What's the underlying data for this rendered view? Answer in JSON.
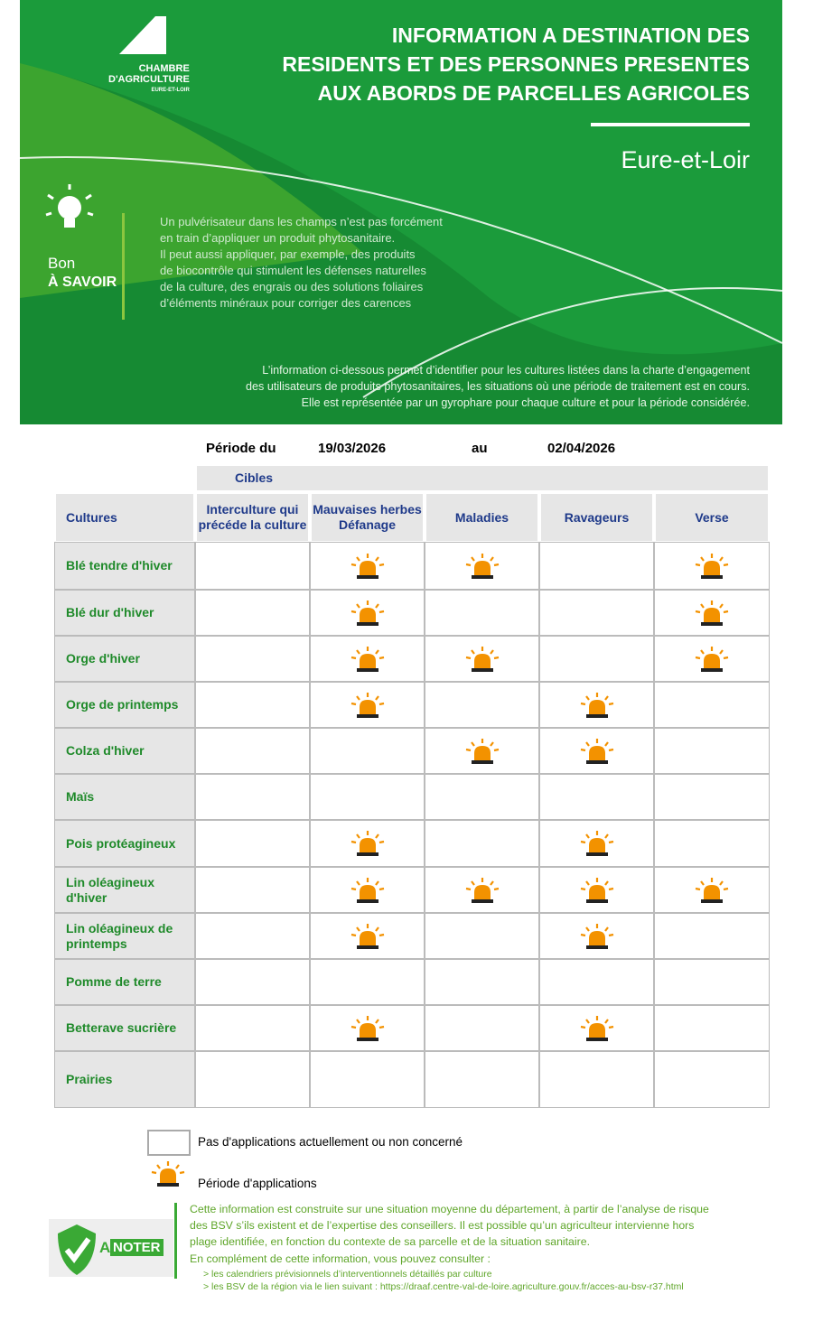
{
  "header": {
    "logo": [
      "CHAMBRE",
      "D'AGRICULTURE",
      "EURE-ET-LOIR"
    ],
    "title": [
      "INFORMATION A DESTINATION DES",
      "RESIDENTS ET DES PERSONNES PRESENTES",
      "AUX ABORDS DE PARCELLES AGRICOLES"
    ],
    "department": "Eure-et-Loir",
    "tip_label": [
      "Bon",
      "À SAVOIR"
    ],
    "tip_text": [
      "Un pulvérisateur dans les champs n’est pas forcément",
      "en train d’appliquer un produit phytosanitaire.",
      "Il peut aussi appliquer, par exemple, des produits",
      "de biocontrôle qui stimulent les défenses naturelles",
      "de la culture, des engrais ou des solutions foliaires",
      "d’éléments minéraux pour corriger des carences"
    ],
    "intro": [
      "L’information ci-dessous permet d’identifier pour les cultures listées dans la charte d’engagement",
      "des utilisateurs de produits phytosanitaires, les situations où une période de traitement est en cours.",
      "Elle est représentée par un gyrophare pour chaque culture et pour la période considérée."
    ]
  },
  "period": {
    "from_label": "Période du",
    "from": "19/03/2026",
    "to_label": "au",
    "to": "02/04/2026"
  },
  "table": {
    "group_header": "Cibles",
    "columns": [
      "Cultures",
      "Interculture qui précéde la culture",
      "Mauvaises herbes Défanage",
      "Maladies",
      "Ravageurs",
      "Verse"
    ],
    "rows": [
      {
        "culture": "Blé tendre d'hiver",
        "periods": [
          false,
          true,
          true,
          false,
          true
        ]
      },
      {
        "culture": "Blé dur d'hiver",
        "periods": [
          false,
          true,
          false,
          false,
          true
        ]
      },
      {
        "culture": "Orge d'hiver",
        "periods": [
          false,
          true,
          true,
          false,
          true
        ]
      },
      {
        "culture": "Orge de printemps",
        "periods": [
          false,
          true,
          false,
          true,
          false
        ]
      },
      {
        "culture": "Colza d'hiver",
        "periods": [
          false,
          false,
          true,
          true,
          false
        ]
      },
      {
        "culture": "Maïs",
        "periods": [
          false,
          false,
          false,
          false,
          false
        ]
      },
      {
        "culture": "Pois protéagineux",
        "periods": [
          false,
          true,
          false,
          true,
          false
        ]
      },
      {
        "culture": "Lin oléagineux d'hiver",
        "periods": [
          false,
          true,
          true,
          true,
          true
        ]
      },
      {
        "culture": "Lin oléagineux de printemps",
        "periods": [
          false,
          true,
          false,
          true,
          false
        ]
      },
      {
        "culture": "Pomme de terre",
        "periods": [
          false,
          false,
          false,
          false,
          false
        ]
      },
      {
        "culture": "Betterave sucrière",
        "periods": [
          false,
          true,
          false,
          true,
          false
        ]
      },
      {
        "culture": "Prairies",
        "periods": [
          false,
          false,
          false,
          false,
          false
        ]
      }
    ]
  },
  "legend": {
    "none": "Pas d'applications actuellement ou non concerné",
    "period": "Période d'applications"
  },
  "note": {
    "badge": [
      "A",
      "NOTER"
    ],
    "text": [
      "Cette information est construite sur une situation moyenne du département, à partir de l’analyse de risque",
      "des BSV s’ils existent et de l’expertise des conseillers. Il est possible qu’un agriculteur intervienne hors",
      "plage identifiée, en fonction du contexte de sa parcelle et de la situation sanitaire."
    ],
    "more": "En complément de cette information, vous pouvez consulter :",
    "links": [
      "> les calendriers prévisionnels d’interventionnels détaillés par culture",
      "> les BSV de la région via le lien suivant : https://draaf.centre-val-de-loire.agriculture.gouv.fr/acces-au-bsv-r37.html"
    ]
  }
}
